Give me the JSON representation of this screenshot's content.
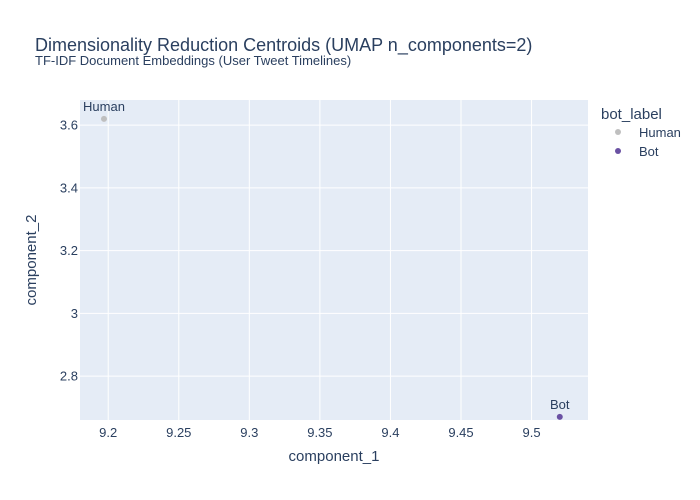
{
  "chart_data": {
    "type": "scatter",
    "title": "Dimensionality Reduction Centroids (UMAP n_components=2)",
    "subtitle": "TF-IDF Document Embeddings (User Tweet Timelines)",
    "xlabel": "component_1",
    "ylabel": "component_2",
    "xlim": [
      9.18,
      9.54
    ],
    "ylim": [
      2.66,
      3.68
    ],
    "x_ticks": [
      9.2,
      9.25,
      9.3,
      9.35,
      9.4,
      9.45,
      9.5
    ],
    "x_tick_labels": [
      "9.2",
      "9.25",
      "9.3",
      "9.35",
      "9.4",
      "9.45",
      "9.5"
    ],
    "y_ticks": [
      2.8,
      3.0,
      3.2,
      3.4,
      3.6
    ],
    "y_tick_labels": [
      "2.8",
      "3",
      "3.2",
      "3.4",
      "3.6"
    ],
    "legend_title": "bot_label",
    "legend_position": "right",
    "series": [
      {
        "name": "Human",
        "color": "#bfbfbf",
        "x": [
          9.197
        ],
        "y": [
          3.62
        ],
        "text": [
          "Human"
        ]
      },
      {
        "name": "Bot",
        "color": "#6a51a3",
        "x": [
          9.52
        ],
        "y": [
          2.67
        ],
        "text": [
          "Bot"
        ]
      }
    ]
  }
}
